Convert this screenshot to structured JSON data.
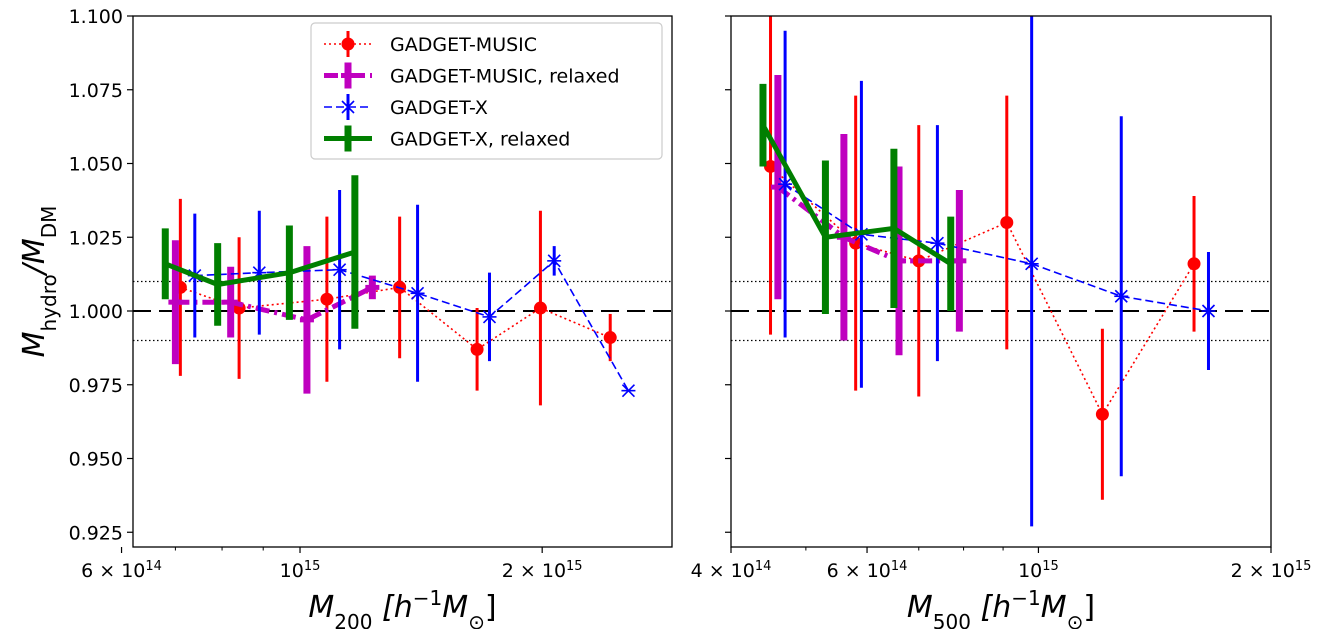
{
  "chart_data": [
    {
      "type": "scatter",
      "panel": "left",
      "xscale": "log",
      "xlim": [
        620000000000000,
        2900000000000000
      ],
      "ylim": [
        0.92,
        1.1
      ],
      "ylabel": {
        "main": "M",
        "sub1": "hydro",
        "sep": "/M",
        "sub2": "DM"
      },
      "xlabel": {
        "main": "M",
        "sub": "200",
        "unit": " [h",
        "exp": "−1",
        "unit2": "M",
        "sub2": "⊙",
        "close": "]"
      },
      "xticks": [
        {
          "value": 600000000000000,
          "mant": "6 × 10",
          "exp": "14"
        },
        {
          "value": 1000000000000000,
          "mant": "10",
          "exp": "15"
        },
        {
          "value": 2000000000000000,
          "mant": "2 × 10",
          "exp": "15"
        }
      ],
      "yticks": [
        "0.925",
        "0.950",
        "0.975",
        "1.000",
        "1.025",
        "1.050",
        "1.075",
        "1.100"
      ],
      "reference_lines": {
        "dashed": 1.0,
        "dotted": [
          0.99,
          1.01
        ]
      },
      "series": [
        {
          "name": "GADGET-MUSIC",
          "color": "#ff0000",
          "style": "dotted-circle",
          "x": [
            710000000000000,
            840000000000000,
            1080000000000000,
            1330000000000000,
            1660000000000000,
            1990000000000000,
            2430000000000000
          ],
          "y": [
            1.008,
            1.001,
            1.004,
            1.008,
            0.987,
            1.001,
            0.991
          ],
          "err": [
            0.03,
            0.024,
            0.028,
            0.024,
            0.014,
            0.033,
            0.008
          ]
        },
        {
          "name": "GADGET-MUSIC, relaxed",
          "color": "#bf00bf",
          "style": "thick-dashdot-plus",
          "x": [
            700000000000000,
            820000000000000,
            1020000000000000,
            1230000000000000
          ],
          "y": [
            1.003,
            1.003,
            0.997,
            1.008
          ],
          "err": [
            0.021,
            0.012,
            0.025,
            0.004
          ]
        },
        {
          "name": "GADGET-X",
          "color": "#0000ff",
          "style": "dashed-x",
          "x": [
            740000000000000,
            890000000000000,
            1120000000000000,
            1400000000000000,
            1720000000000000,
            2070000000000000,
            2560000000000000
          ],
          "y": [
            1.012,
            1.013,
            1.014,
            1.006,
            0.998,
            1.017,
            0.973
          ],
          "err": [
            0.021,
            0.021,
            0.027,
            0.03,
            0.015,
            0.005,
            0.0
          ]
        },
        {
          "name": "GADGET-X, relaxed",
          "color": "#007f00",
          "style": "thick-solid",
          "x": [
            680000000000000,
            790000000000000,
            970000000000000,
            1170000000000000
          ],
          "y": [
            1.016,
            1.009,
            1.013,
            1.02
          ],
          "err": [
            0.012,
            0.014,
            0.016,
            0.026
          ]
        }
      ],
      "legend": {
        "placement": "top-right"
      }
    },
    {
      "type": "scatter",
      "panel": "right",
      "xscale": "log",
      "xlim": [
        400000000000000,
        2000000000000000
      ],
      "ylim": [
        0.92,
        1.1
      ],
      "xlabel": {
        "main": "M",
        "sub": "500",
        "unit": " [h",
        "exp": "−1",
        "unit2": "M",
        "sub2": "⊙",
        "close": "]"
      },
      "xticks": [
        {
          "value": 400000000000000,
          "mant": "4 × 10",
          "exp": "14"
        },
        {
          "value": 600000000000000,
          "mant": "6 × 10",
          "exp": "14"
        },
        {
          "value": 1000000000000000,
          "mant": "10",
          "exp": "15"
        },
        {
          "value": 2000000000000000,
          "mant": "2 × 10",
          "exp": "15"
        }
      ],
      "reference_lines": {
        "dashed": 1.0,
        "dotted": [
          0.99,
          1.01
        ]
      },
      "series": [
        {
          "name": "GADGET-MUSIC",
          "color": "#ff0000",
          "style": "dotted-circle",
          "x": [
            450000000000000,
            580000000000000,
            700000000000000,
            910000000000000,
            1210000000000000,
            1590000000000000
          ],
          "y": [
            1.049,
            1.023,
            1.017,
            1.03,
            0.965,
            1.016
          ],
          "err": [
            0.057,
            0.05,
            0.046,
            0.043,
            0.029,
            0.023
          ]
        },
        {
          "name": "GADGET-MUSIC, relaxed",
          "color": "#bf00bf",
          "style": "thick-dashdot-plus",
          "x": [
            460000000000000,
            560000000000000,
            660000000000000,
            790000000000000
          ],
          "y": [
            1.042,
            1.025,
            1.017,
            1.017
          ],
          "err": [
            0.038,
            0.035,
            0.032,
            0.024
          ]
        },
        {
          "name": "GADGET-X",
          "color": "#0000ff",
          "style": "dashed-x",
          "x": [
            470000000000000,
            590000000000000,
            740000000000000,
            980000000000000,
            1280000000000000,
            1660000000000000
          ],
          "y": [
            1.043,
            1.026,
            1.023,
            1.016,
            1.005,
            1.0
          ],
          "err": [
            0.052,
            0.052,
            0.04,
            0.089,
            0.061,
            0.02
          ]
        },
        {
          "name": "GADGET-X, relaxed",
          "color": "#007f00",
          "style": "thick-solid",
          "x": [
            440000000000000,
            530000000000000,
            650000000000000,
            770000000000000
          ],
          "y": [
            1.063,
            1.025,
            1.028,
            1.016
          ],
          "err": [
            0.014,
            0.026,
            0.027,
            0.016
          ]
        }
      ]
    }
  ]
}
